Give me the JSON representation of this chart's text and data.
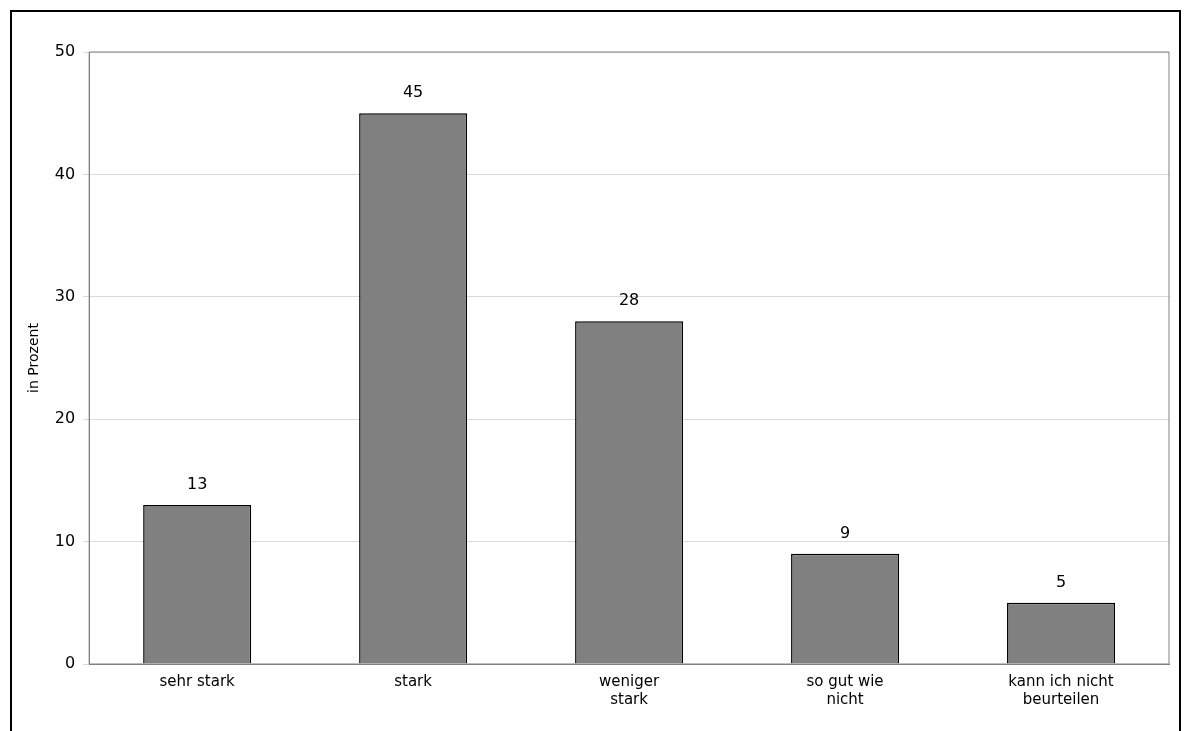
{
  "chart_data": {
    "type": "bar",
    "ylabel": "in Prozent",
    "categories": [
      "sehr stark",
      "stark",
      "weniger\nstark",
      "so gut wie\nnicht",
      "kann ich nicht\nbeurteilen"
    ],
    "values": [
      13,
      45,
      28,
      9,
      5
    ],
    "color": "#808080",
    "ylim": [
      0,
      50
    ],
    "yticks": [
      0,
      10,
      20,
      30,
      40,
      50
    ],
    "grid": "y",
    "legend": false,
    "data_labels": true
  }
}
